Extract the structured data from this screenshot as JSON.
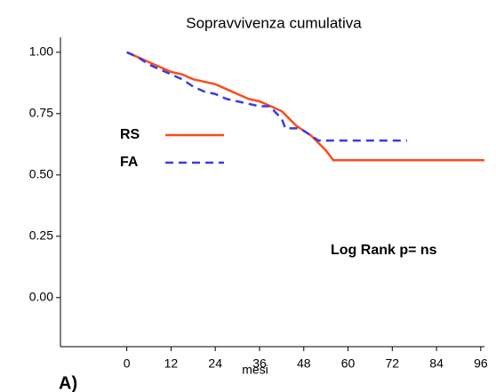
{
  "chart_data": {
    "type": "line",
    "title": "Sopravvivenza cumulativa",
    "x_label": "mesi",
    "panel_label": "A)",
    "annotation": "Log Rank p= ns",
    "series": [
      {
        "name": "RS",
        "color": "#ff4a1a",
        "dash": false,
        "x": [
          0,
          3,
          6,
          9,
          12,
          15,
          18,
          21,
          24,
          27,
          30,
          33,
          36,
          39,
          42,
          44,
          46,
          48,
          50,
          52,
          54,
          56,
          60,
          72,
          84,
          97
        ],
        "values": [
          1.0,
          0.98,
          0.96,
          0.94,
          0.92,
          0.91,
          0.89,
          0.88,
          0.87,
          0.85,
          0.83,
          0.81,
          0.8,
          0.78,
          0.76,
          0.73,
          0.7,
          0.68,
          0.66,
          0.63,
          0.6,
          0.56,
          0.56,
          0.56,
          0.56,
          0.56
        ]
      },
      {
        "name": "FA",
        "color": "#3a3ae8",
        "dash": true,
        "x": [
          0,
          3,
          6,
          9,
          12,
          15,
          18,
          21,
          24,
          27,
          30,
          33,
          36,
          39,
          40,
          42,
          43,
          46,
          48,
          50,
          52,
          60,
          70,
          76
        ],
        "values": [
          1.0,
          0.98,
          0.95,
          0.93,
          0.91,
          0.89,
          0.86,
          0.84,
          0.83,
          0.81,
          0.8,
          0.79,
          0.78,
          0.78,
          0.76,
          0.73,
          0.69,
          0.69,
          0.68,
          0.66,
          0.64,
          0.64,
          0.64,
          0.64
        ]
      }
    ],
    "xlim": [
      -18,
      97
    ],
    "ylim": [
      -0.2,
      1.05
    ],
    "xticks": [
      0,
      12,
      24,
      36,
      48,
      60,
      72,
      84,
      96
    ],
    "yticks": [
      {
        "value": 1,
        "label": "1.00"
      },
      {
        "value": 0.75,
        "label": "0.75"
      },
      {
        "value": 0.5,
        "label": "0.50"
      },
      {
        "value": 0.25,
        "label": "0.25"
      },
      {
        "value": 0,
        "label": "0.00"
      }
    ]
  }
}
